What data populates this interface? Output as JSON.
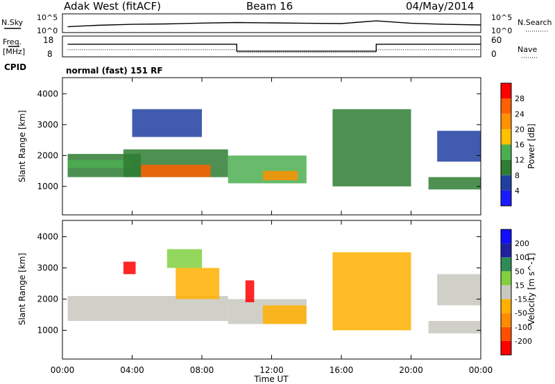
{
  "header": {
    "station": "Adak West (fitACF)",
    "beam": "Beam 16",
    "date": "04/May/2014"
  },
  "noise_panel": {
    "left_label": "N.Sky",
    "right_label": "N.Search",
    "left_ticks": [
      "10^5",
      "10^0"
    ],
    "right_ticks": [
      "10^5",
      "10^0"
    ]
  },
  "freq_panel": {
    "left_label_1": "Freq.",
    "left_label_2": "[MHz]",
    "right_label": "Nave",
    "left_ticks": [
      "18",
      "8"
    ],
    "right_ticks": [
      "60",
      "0"
    ],
    "cpid_label": "CPID",
    "cpid_text": "normal (fast) 151 RF"
  },
  "power_panel": {
    "ylabel": "Slant Range [km]",
    "yticks": [
      "1000",
      "2000",
      "3000",
      "4000"
    ],
    "colorbar_label": "Power [dB]",
    "colorbar_ticks": [
      "4",
      "8",
      "12",
      "16",
      "20",
      "24",
      "28"
    ],
    "colors": [
      "#1a1aff",
      "#2040a0",
      "#2e7d32",
      "#4caf50",
      "#ffc000",
      "#ff9000",
      "#ff6000",
      "#ff0000"
    ]
  },
  "velocity_panel": {
    "ylabel": "Slant Range [km]",
    "yticks": [
      "1000",
      "2000",
      "3000",
      "4000"
    ],
    "colorbar_label": "Velocity [m s^-1]",
    "colorbar_ticks": [
      "-200",
      "-100",
      "-50",
      "-15",
      "15",
      "50",
      "100",
      "200"
    ],
    "colors": [
      "#ff0000",
      "#ff5000",
      "#ff8c00",
      "#ffb000",
      "#c8c8c0",
      "#80d040",
      "#2e8b57",
      "#2020a0",
      "#1010ff"
    ]
  },
  "xaxis": {
    "label": "Time UT",
    "ticks": [
      "00:00",
      "04:00",
      "08:00",
      "12:00",
      "16:00",
      "20:00",
      "00:00"
    ]
  },
  "chart_data": [
    {
      "type": "line",
      "title": "N.Sky / N.Search",
      "x_unit": "hours UT",
      "xlim": [
        0,
        24
      ],
      "series": [
        {
          "name": "N.Sky",
          "x": [
            0.3,
            2,
            4,
            6,
            8,
            10,
            12,
            14,
            16,
            18,
            20,
            22,
            24
          ],
          "values": [
            30,
            80,
            150,
            200,
            350,
            500,
            400,
            300,
            250,
            1500,
            300,
            150,
            100
          ]
        }
      ]
    },
    {
      "type": "line",
      "title": "Freq. / Nave",
      "x_unit": "hours UT",
      "xlim": [
        0,
        24
      ],
      "series": [
        {
          "name": "Freq. [MHz]",
          "x": [
            0.3,
            10,
            10,
            18,
            18,
            24
          ],
          "values": [
            14.5,
            14.5,
            10.5,
            10.5,
            14.5,
            14.5
          ]
        },
        {
          "name": "Nave",
          "x": [
            0.3,
            10,
            10,
            18,
            18,
            24
          ],
          "values": [
            20,
            20,
            10,
            10,
            20,
            20
          ]
        }
      ]
    },
    {
      "type": "heatmap",
      "title": "Power [dB]",
      "x_unit": "hours UT",
      "y_unit": "km",
      "xlim": [
        0,
        24
      ],
      "ylim": [
        100,
        4500
      ],
      "zlim": [
        0,
        32
      ],
      "regions": [
        {
          "x0": 0.3,
          "x1": 4.5,
          "y0": 1300,
          "y1": 2050,
          "z": 8
        },
        {
          "x0": 0.3,
          "x1": 4.0,
          "y0": 1600,
          "y1": 1850,
          "z": 15
        },
        {
          "x0": 3.5,
          "x1": 9.5,
          "y0": 1300,
          "y1": 2200,
          "z": 10
        },
        {
          "x0": 4.5,
          "x1": 8.5,
          "y0": 1300,
          "y1": 1700,
          "z": 27
        },
        {
          "x0": 9.5,
          "x1": 14.0,
          "y0": 1100,
          "y1": 2000,
          "z": 12
        },
        {
          "x0": 11.5,
          "x1": 13.5,
          "y0": 1200,
          "y1": 1500,
          "z": 22
        },
        {
          "x0": 4.0,
          "x1": 8.0,
          "y0": 2600,
          "y1": 3500,
          "z": 6
        },
        {
          "x0": 21.0,
          "x1": 24.0,
          "y0": 900,
          "y1": 1300,
          "z": 8
        },
        {
          "x0": 21.5,
          "x1": 24.0,
          "y0": 1800,
          "y1": 2800,
          "z": 6
        },
        {
          "x0": 15.5,
          "x1": 20.0,
          "y0": 1000,
          "y1": 3500,
          "z": 10
        }
      ]
    },
    {
      "type": "heatmap",
      "title": "Velocity [m s^-1]",
      "x_unit": "hours UT",
      "y_unit": "km",
      "xlim": [
        0,
        24
      ],
      "ylim": [
        100,
        4500
      ],
      "zlim": [
        -200,
        200
      ],
      "regions": [
        {
          "x0": 0.3,
          "x1": 9.5,
          "y0": 1300,
          "y1": 2100,
          "z": 0
        },
        {
          "x0": 9.5,
          "x1": 14.0,
          "y0": 1200,
          "y1": 2000,
          "z": 0
        },
        {
          "x0": 11.5,
          "x1": 14.0,
          "y0": 1200,
          "y1": 1800,
          "z": -60
        },
        {
          "x0": 6.5,
          "x1": 9.0,
          "y0": 2000,
          "y1": 3000,
          "z": -60
        },
        {
          "x0": 6.0,
          "x1": 8.0,
          "y0": 3000,
          "y1": 3600,
          "z": 60
        },
        {
          "x0": 3.5,
          "x1": 4.2,
          "y0": 2800,
          "y1": 3200,
          "z": -200
        },
        {
          "x0": 10.5,
          "x1": 11.0,
          "y0": 1900,
          "y1": 2600,
          "z": -200
        },
        {
          "x0": 21.0,
          "x1": 24.0,
          "y0": 900,
          "y1": 1300,
          "z": 0
        },
        {
          "x0": 21.5,
          "x1": 24.0,
          "y0": 1800,
          "y1": 2800,
          "z": 0
        },
        {
          "x0": 15.5,
          "x1": 20.0,
          "y0": 1000,
          "y1": 3500,
          "z": -30
        }
      ]
    }
  ]
}
